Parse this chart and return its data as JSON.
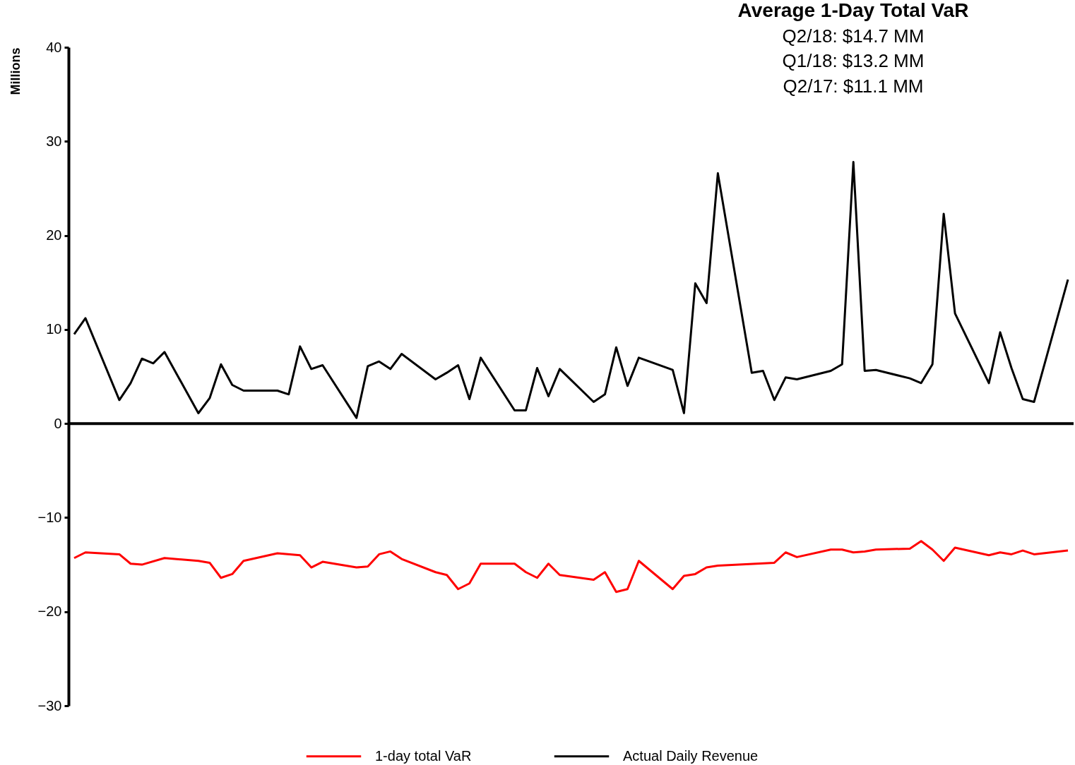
{
  "chart_data": {
    "type": "line",
    "ylabel": "Millions",
    "annotations": [
      "Average 1-Day Total VaR",
      "Q2/18: $14.7 MM",
      "Q1/18: $13.2 MM",
      "Q2/17: $11.1 MM"
    ],
    "categories": [
      null,
      null,
      null,
      null,
      null,
      null,
      null,
      null,
      null,
      null,
      null,
      null,
      null,
      null,
      null,
      null,
      null,
      null,
      null,
      null,
      null,
      null,
      null,
      null,
      null,
      null,
      null,
      null,
      null,
      null,
      null,
      null,
      null,
      null,
      null,
      null,
      null,
      null,
      null,
      null,
      null,
      null,
      null,
      null,
      null,
      null,
      null,
      null,
      null,
      null,
      null,
      null,
      null,
      null,
      null,
      null,
      null,
      null,
      null,
      null,
      null,
      null,
      null,
      null,
      null,
      null,
      null,
      null,
      null,
      null,
      null,
      null,
      null,
      null,
      null,
      null,
      null,
      null,
      null,
      null,
      null,
      null,
      null,
      null,
      null,
      null,
      null,
      null,
      null
    ],
    "series": [
      {
        "name": "1-day total VaR",
        "color": "#ff0000",
        "values": [
          -14.3,
          -13.7,
          null,
          null,
          -13.9,
          -14.9,
          -15.0,
          null,
          -14.3,
          null,
          null,
          -14.6,
          -14.8,
          -16.4,
          -16.0,
          -14.6,
          null,
          null,
          -13.8,
          null,
          -14.0,
          -15.3,
          -14.7,
          null,
          null,
          -15.3,
          -15.2,
          -13.9,
          -13.6,
          -14.4,
          null,
          null,
          -15.8,
          -16.1,
          -17.6,
          -17.0,
          -14.9,
          null,
          null,
          -14.9,
          -15.8,
          -16.4,
          -14.9,
          -16.1,
          null,
          null,
          -16.6,
          -15.8,
          -17.9,
          -17.6,
          -14.6,
          null,
          null,
          -17.6,
          -16.2,
          -16.0,
          -15.3,
          -15.1,
          null,
          null,
          null,
          null,
          -14.8,
          -13.7,
          -14.2,
          null,
          null,
          -13.4,
          -13.4,
          -13.7,
          -13.6,
          -13.4,
          null,
          null,
          -13.3,
          -12.5,
          -13.4,
          -14.6,
          -13.2,
          null,
          null,
          -14.0,
          -13.7,
          -13.9,
          -13.5,
          -13.9,
          null,
          null,
          -13.5
        ]
      },
      {
        "name": "Actual Daily Revenue",
        "color": "#000000",
        "values": [
          9.5,
          11.2,
          null,
          null,
          2.5,
          4.3,
          6.9,
          6.4,
          7.6,
          null,
          null,
          1.1,
          2.7,
          6.3,
          4.1,
          3.5,
          null,
          null,
          3.5,
          3.1,
          8.2,
          5.8,
          6.2,
          null,
          null,
          0.6,
          6.1,
          6.6,
          5.8,
          7.4,
          null,
          null,
          4.7,
          5.4,
          6.2,
          2.6,
          7.0,
          null,
          null,
          1.4,
          1.4,
          5.9,
          2.9,
          5.8,
          null,
          null,
          2.3,
          3.1,
          8.1,
          4.0,
          7.0,
          null,
          null,
          5.7,
          1.1,
          14.9,
          12.8,
          26.6,
          null,
          null,
          5.4,
          5.6,
          2.5,
          4.9,
          4.7,
          null,
          null,
          5.6,
          6.3,
          27.8,
          5.6,
          5.7,
          null,
          null,
          4.8,
          4.3,
          6.3,
          22.3,
          11.7,
          null,
          null,
          4.3,
          9.7,
          5.9,
          2.6,
          2.3,
          null,
          null,
          15.3
        ]
      }
    ],
    "ylim": [
      -30,
      40
    ],
    "yticks": [
      -30,
      -20,
      -10,
      0,
      10,
      20,
      30,
      40
    ],
    "ref_lines": [
      {
        "axis": "y",
        "value": 0,
        "color": "#000000"
      }
    ],
    "tick_labels": "y",
    "legend": "bottom"
  }
}
